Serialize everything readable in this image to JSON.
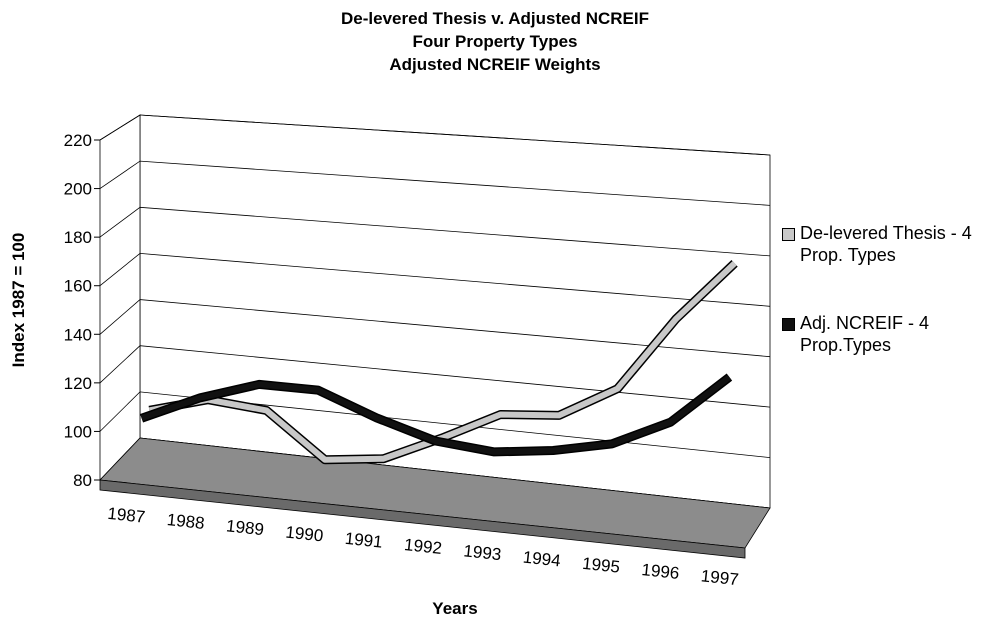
{
  "chart_data": {
    "type": "line3d",
    "title": "De-levered Thesis v. Adjusted NCREIF",
    "subtitle": [
      "Four Property Types",
      "Adjusted NCREIF Weights"
    ],
    "x_label": "Years",
    "y_label": "Index 1987 = 100",
    "categories": [
      "1987",
      "1988",
      "1989",
      "1990",
      "1991",
      "1992",
      "1993",
      "1994",
      "1995",
      "1996",
      "1997"
    ],
    "series": [
      {
        "name": "De-levered Thesis - 4 Prop. Types",
        "color": "#c8c8c8",
        "values": [
          100,
          107,
          105,
          87,
          90,
          101,
          113,
          115,
          128,
          158,
          182
        ]
      },
      {
        "name": "Adj. NCREIF - 4 Prop.Types",
        "color": "#111111",
        "values": [
          100,
          111,
          119,
          119,
          110,
          103,
          101,
          104,
          109,
          120,
          140
        ]
      }
    ],
    "ylim": [
      80,
      220
    ],
    "yticks": [
      80,
      100,
      120,
      140,
      160,
      180,
      200,
      220
    ],
    "grid": true
  }
}
